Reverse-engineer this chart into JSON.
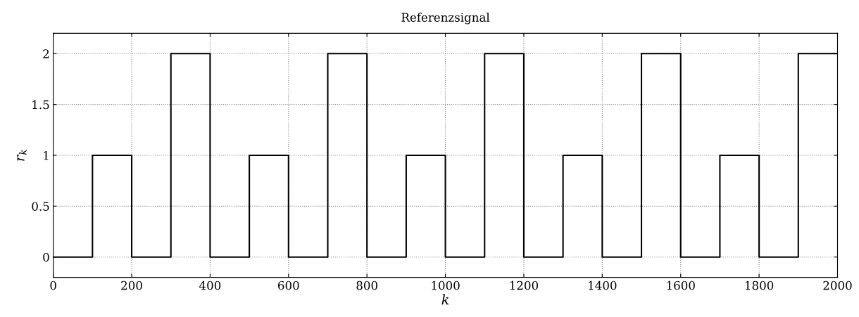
{
  "chart_data": {
    "type": "line",
    "title": "Referenzsignal",
    "xlabel": "k",
    "ylabel": "r$_{k}$",
    "x": [
      0,
      100,
      100,
      200,
      200,
      300,
      300,
      400,
      400,
      500,
      500,
      600,
      600,
      700,
      700,
      800,
      800,
      900,
      900,
      1000,
      1000,
      1100,
      1100,
      1200,
      1200,
      1300,
      1300,
      1400,
      1400,
      1500,
      1500,
      1600,
      1600,
      1700,
      1700,
      1800,
      1800,
      1900,
      1900,
      2000
    ],
    "series": [
      {
        "color": "#000000",
        "values": [
          0,
          0,
          1,
          1,
          0,
          0,
          2,
          2,
          0,
          0,
          1,
          1,
          0,
          0,
          2,
          2,
          0,
          0,
          1,
          1,
          0,
          0,
          2,
          2,
          0,
          0,
          1,
          1,
          0,
          0,
          2,
          2,
          0,
          0,
          1,
          1,
          0,
          0,
          2,
          2
        ]
      }
    ],
    "xlim": [
      0,
      2000
    ],
    "xticks": [
      0,
      200,
      400,
      600,
      800,
      1000,
      1200,
      1400,
      1600,
      1800,
      2000
    ],
    "ylim": [
      -0.2,
      2.2
    ],
    "yticks": [
      0,
      0.5,
      1,
      1.5,
      2
    ],
    "grid": true,
    "line_style": "solid",
    "marker": "none",
    "legend": false
  }
}
